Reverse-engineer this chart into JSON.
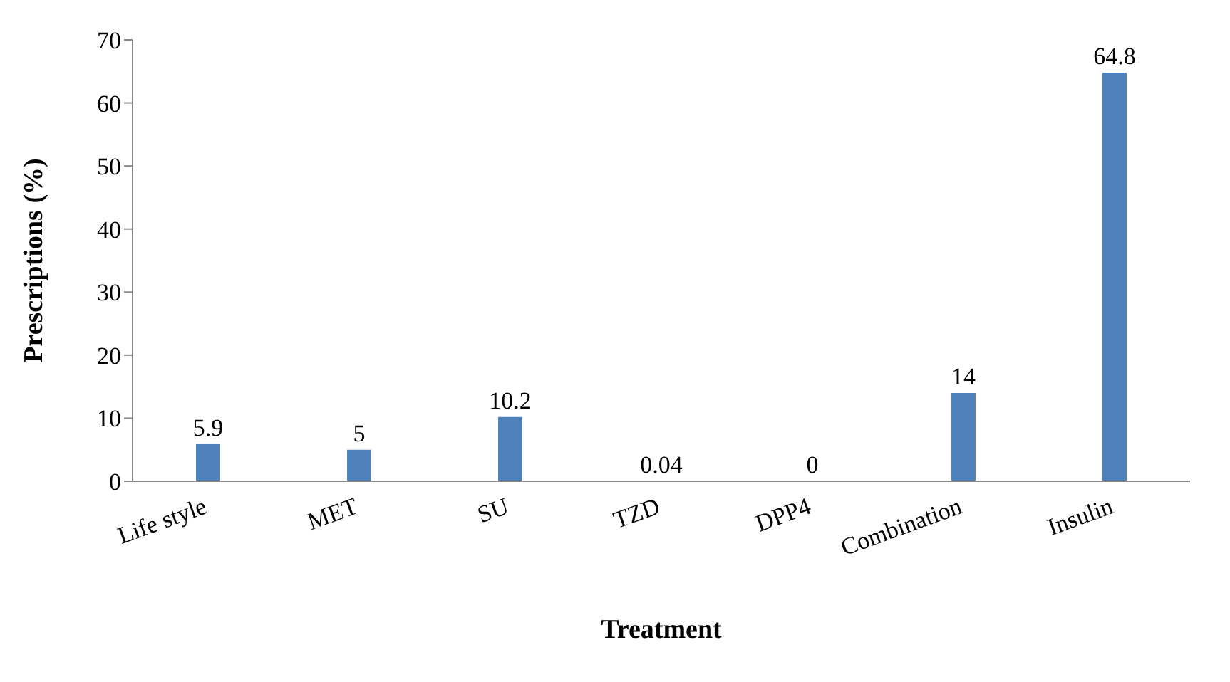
{
  "chart_data": {
    "type": "bar",
    "xlabel": "Treatment",
    "ylabel": "Prescriptions (%)",
    "categories": [
      "Life style",
      "MET",
      "SU",
      "TZD",
      "DPP4",
      "Combination",
      "Insulin"
    ],
    "values": [
      5.9,
      5,
      10.2,
      0.04,
      0,
      14,
      64.8
    ],
    "color": "#4f81bd",
    "ylim": [
      0,
      70
    ],
    "yticks": [
      0,
      10,
      20,
      30,
      40,
      50,
      60,
      70
    ],
    "data_labels": true
  }
}
